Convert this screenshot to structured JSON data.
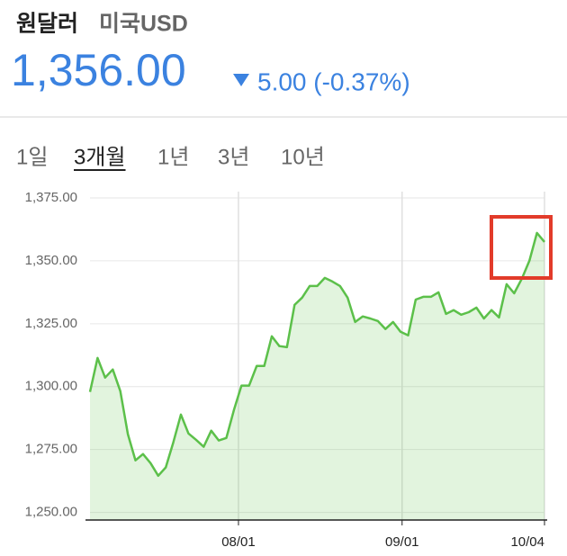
{
  "header": {
    "title": "원달러",
    "subtitle": "미국USD",
    "price": "1,356.00",
    "change": "5.00 (-0.37%)"
  },
  "tabs": {
    "items": [
      "1일",
      "3개월",
      "1년",
      "3년",
      "10년"
    ],
    "selected": 1
  },
  "chart_data": {
    "type": "line",
    "x": [
      0,
      1,
      2,
      3,
      4,
      5,
      6,
      7,
      8,
      9,
      10,
      11,
      12,
      13,
      14,
      15,
      16,
      17,
      18,
      19,
      20,
      21,
      22,
      23,
      24,
      25,
      26,
      27,
      28,
      29,
      30,
      31,
      32,
      33,
      34,
      35,
      36,
      37,
      38,
      39,
      40,
      41,
      42,
      43,
      44,
      45,
      46,
      47,
      48,
      49,
      50,
      51,
      52,
      53,
      54,
      55,
      56,
      57,
      58,
      59,
      60
    ],
    "y": [
      1297.9,
      1311.4,
      1303.6,
      1306.8,
      1298.2,
      1281.1,
      1270.7,
      1273.2,
      1269.6,
      1264.6,
      1267.9,
      1277.9,
      1288.9,
      1281.4,
      1278.9,
      1276.1,
      1282.5,
      1278.6,
      1279.6,
      1290.7,
      1300.4,
      1300.4,
      1308.2,
      1308.2,
      1320.0,
      1316.1,
      1315.7,
      1332.5,
      1335.4,
      1340.0,
      1340.0,
      1343.2,
      1341.8,
      1340.0,
      1335.4,
      1325.7,
      1327.9,
      1327.1,
      1326.1,
      1322.9,
      1325.7,
      1321.8,
      1320.4,
      1334.6,
      1335.7,
      1335.7,
      1337.5,
      1328.9,
      1330.4,
      1328.6,
      1329.6,
      1331.4,
      1327.1,
      1330.4,
      1327.5,
      1340.7,
      1337.1,
      1342.9,
      1350.0,
      1361.1,
      1357.5
    ],
    "color": "#5cc04a",
    "xlim": [
      0,
      60
    ],
    "ylim": [
      1247,
      1377.5
    ],
    "xticks": [
      {
        "value": 19.6,
        "label": "08/01"
      },
      {
        "value": 41.2,
        "label": "09/01"
      },
      {
        "value": 60,
        "label": "10/04"
      }
    ],
    "yticks": [
      {
        "value": 1250,
        "label": "1,250.00"
      },
      {
        "value": 1275,
        "label": "1,275.00"
      },
      {
        "value": 1300,
        "label": "1,300.00"
      },
      {
        "value": 1325,
        "label": "1,325.00"
      },
      {
        "value": 1350,
        "label": "1,350.00"
      },
      {
        "value": 1375,
        "label": "1,375.00"
      }
    ],
    "grid": true
  }
}
